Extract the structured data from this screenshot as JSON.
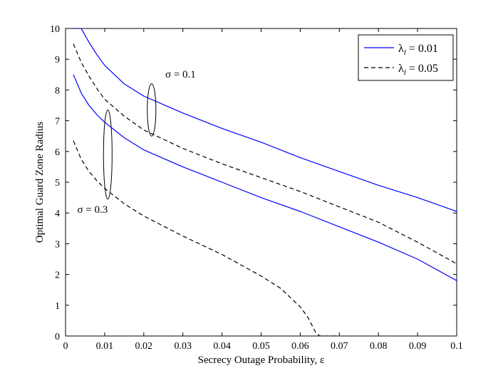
{
  "chart_data": {
    "type": "line",
    "title": "",
    "xlabel": "Secrecy Outage Probability, ε",
    "ylabel": "Optimal Guard Zone Radius",
    "xlim": [
      0,
      0.1
    ],
    "ylim": [
      0,
      10
    ],
    "xticks": [
      "0",
      "0.01",
      "0.02",
      "0.03",
      "0.04",
      "0.05",
      "0.06",
      "0.07",
      "0.08",
      "0.09",
      "0.1"
    ],
    "yticks": [
      "0",
      "1",
      "2",
      "3",
      "4",
      "5",
      "6",
      "7",
      "8",
      "9",
      "10"
    ],
    "grid": false,
    "legend_position": "top-right",
    "legend": [
      {
        "label": "λ",
        "sub": "l",
        "value": " = 0.01",
        "style": "solid",
        "color": "#0000ff"
      },
      {
        "label": "λ",
        "sub": "l",
        "value": " = 0.05",
        "style": "dashed",
        "color": "#000000"
      }
    ],
    "series": [
      {
        "group": "σ = 0.1",
        "legend_index": 0,
        "style": "solid",
        "color": "#0000ff",
        "x": [
          0.002,
          0.004,
          0.006,
          0.008,
          0.01,
          0.015,
          0.02,
          0.03,
          0.04,
          0.05,
          0.06,
          0.07,
          0.08,
          0.09,
          0.1
        ],
        "y": [
          10.0,
          10.0,
          9.55,
          9.15,
          8.8,
          8.2,
          7.8,
          7.25,
          6.75,
          6.3,
          5.8,
          5.35,
          4.9,
          4.5,
          4.05
        ]
      },
      {
        "group": "σ = 0.1",
        "legend_index": 1,
        "style": "dashed",
        "color": "#000000",
        "x": [
          0.002,
          0.004,
          0.006,
          0.008,
          0.01,
          0.015,
          0.02,
          0.03,
          0.04,
          0.05,
          0.06,
          0.07,
          0.08,
          0.09,
          0.1
        ],
        "y": [
          9.5,
          8.9,
          8.45,
          8.05,
          7.7,
          7.15,
          6.7,
          6.1,
          5.6,
          5.15,
          4.7,
          4.2,
          3.7,
          3.05,
          2.35
        ]
      },
      {
        "group": "σ = 0.3",
        "legend_index": 0,
        "style": "solid",
        "color": "#0000ff",
        "x": [
          0.002,
          0.004,
          0.006,
          0.008,
          0.01,
          0.015,
          0.02,
          0.03,
          0.04,
          0.05,
          0.06,
          0.07,
          0.08,
          0.09,
          0.1
        ],
        "y": [
          8.5,
          7.9,
          7.5,
          7.2,
          6.95,
          6.45,
          6.05,
          5.5,
          5.0,
          4.5,
          4.05,
          3.55,
          3.05,
          2.5,
          1.8
        ]
      },
      {
        "group": "σ = 0.3",
        "legend_index": 1,
        "style": "dashed",
        "color": "#000000",
        "x": [
          0.002,
          0.004,
          0.006,
          0.008,
          0.01,
          0.015,
          0.02,
          0.03,
          0.04,
          0.045,
          0.05,
          0.055,
          0.06,
          0.062,
          0.064,
          0.065,
          0.07
        ],
        "y": [
          6.35,
          5.75,
          5.35,
          5.05,
          4.8,
          4.3,
          3.9,
          3.25,
          2.65,
          2.3,
          1.95,
          1.55,
          0.95,
          0.6,
          0.1,
          0.0,
          0.0
        ]
      }
    ],
    "annotations": [
      {
        "text": "σ = 0.1",
        "x": 0.0255,
        "y": 8.4
      },
      {
        "text": "σ = 0.3",
        "x": 0.003,
        "y": 4.0
      }
    ],
    "ellipses": [
      {
        "cx": 0.022,
        "cy": 7.35,
        "rx": 0.0011,
        "ry": 0.85
      },
      {
        "cx": 0.0108,
        "cy": 5.9,
        "rx": 0.0011,
        "ry": 1.45
      }
    ]
  }
}
